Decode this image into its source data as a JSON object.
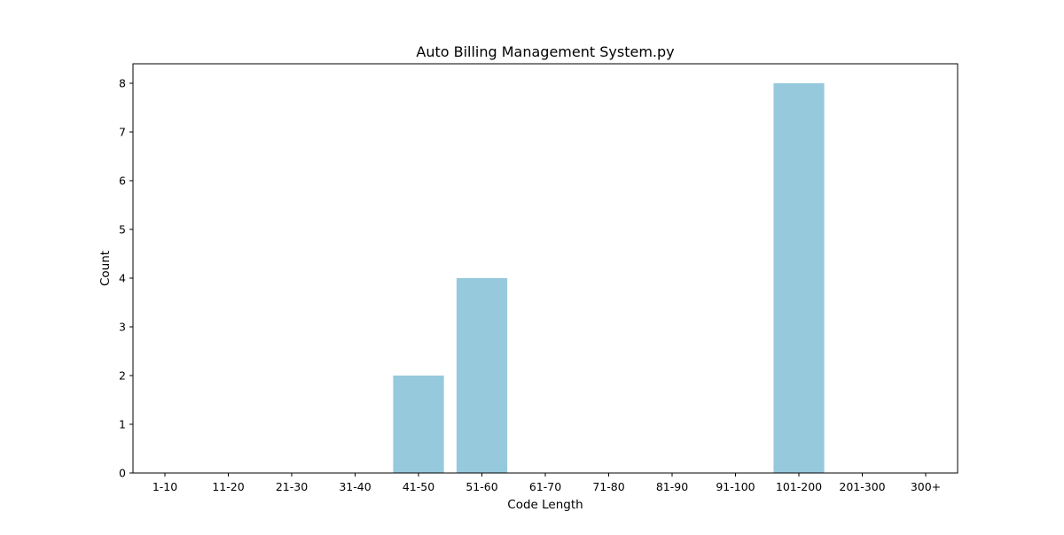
{
  "chart_data": {
    "type": "bar",
    "title": "Auto Billing Management System.py",
    "xlabel": "Code Length",
    "ylabel": "Count",
    "categories": [
      "1-10",
      "11-20",
      "21-30",
      "31-40",
      "41-50",
      "51-60",
      "61-70",
      "71-80",
      "81-90",
      "91-100",
      "101-200",
      "201-300",
      "300+"
    ],
    "values": [
      0,
      0,
      0,
      0,
      2,
      4,
      0,
      0,
      0,
      0,
      8,
      0,
      0
    ],
    "ylim": [
      0,
      8.4
    ],
    "yticks": [
      0,
      1,
      2,
      3,
      4,
      5,
      6,
      7,
      8
    ],
    "grid": false,
    "bar_color": "#96c9dc"
  }
}
